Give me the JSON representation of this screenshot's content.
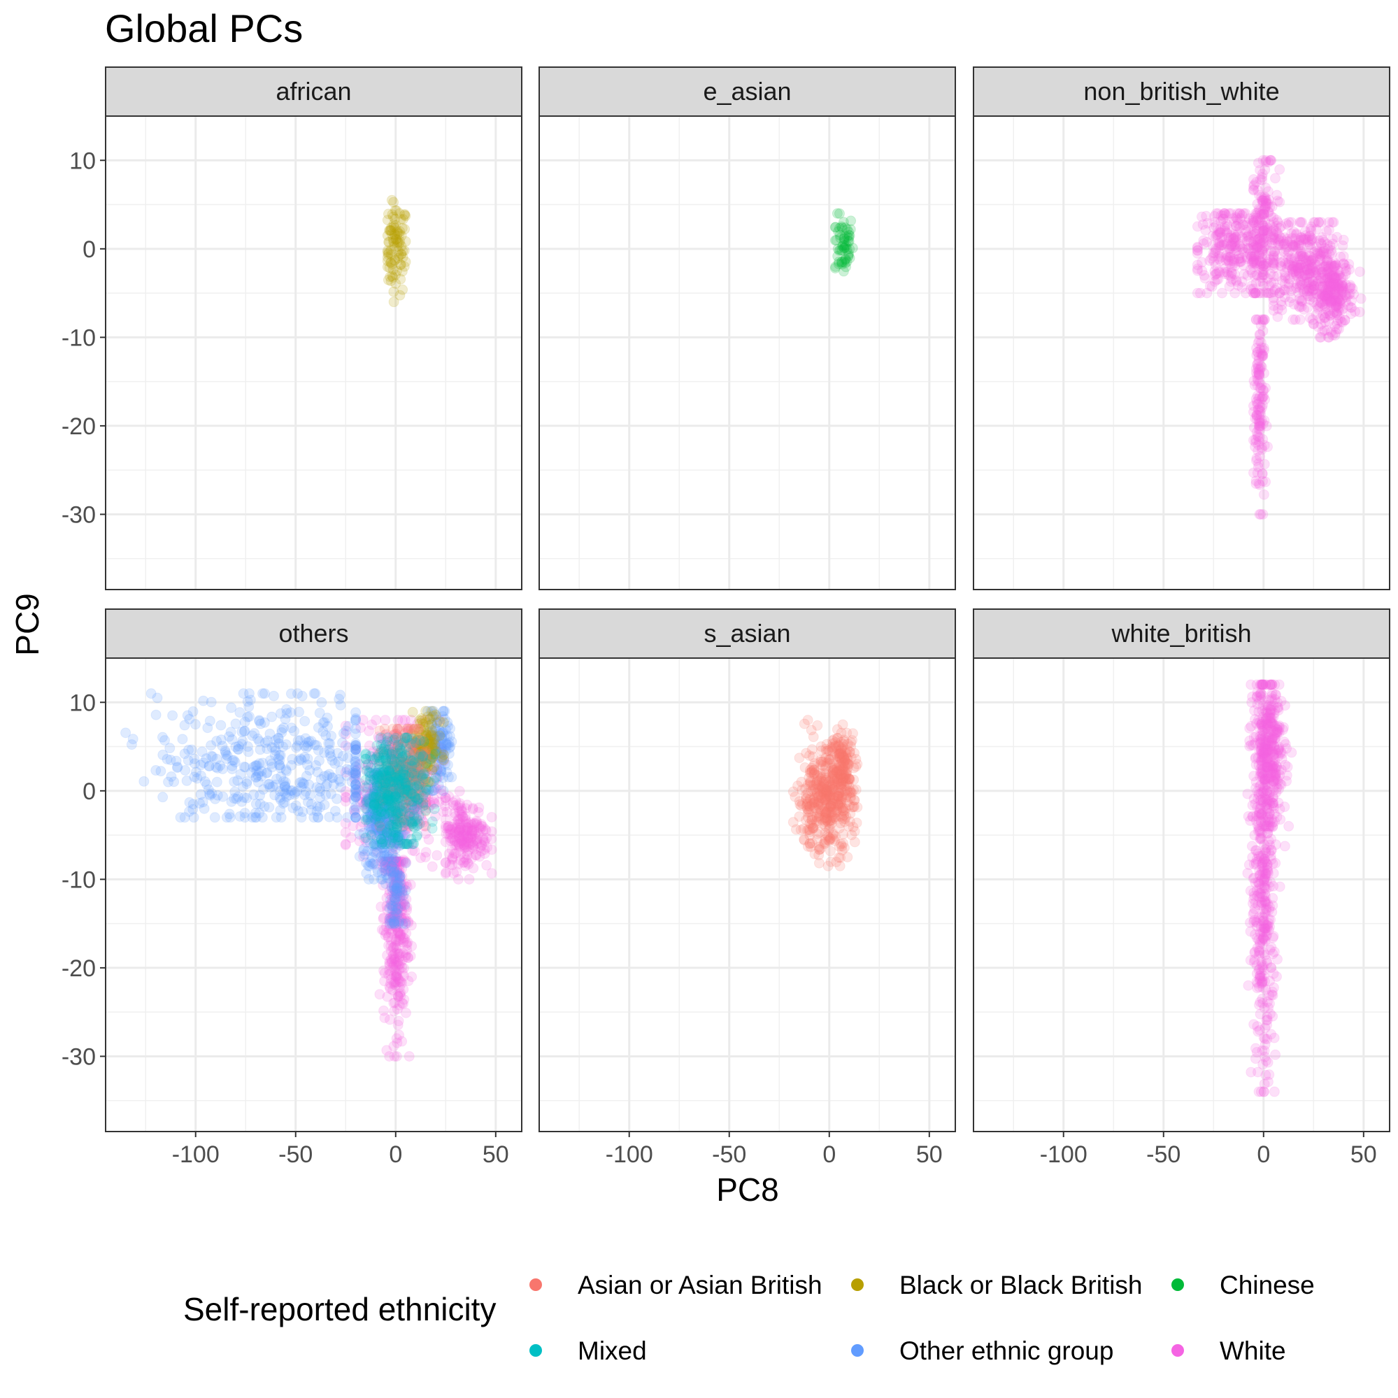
{
  "chart_data": {
    "type": "scatter",
    "title": "Global PCs",
    "xlabel": "PC8",
    "ylabel": "PC9",
    "xlim": [
      -145,
      63
    ],
    "ylim": [
      -38.5,
      15
    ],
    "x_ticks": [
      -100,
      -50,
      0,
      50
    ],
    "y_ticks": [
      10,
      0,
      -10,
      -20,
      -30
    ],
    "grid": true,
    "point_alpha": 0.05,
    "legend": {
      "title": "Self-reported ethnicity",
      "position": "bottom",
      "entries": [
        {
          "label": "Asian or Asian British",
          "color": "#F8766D"
        },
        {
          "label": "Black or Black British",
          "color": "#B79F00"
        },
        {
          "label": "Chinese",
          "color": "#00BA38"
        },
        {
          "label": "Mixed",
          "color": "#00BFC4"
        },
        {
          "label": "Other ethnic group",
          "color": "#619CFF"
        },
        {
          "label": "White",
          "color": "#F564E3"
        }
      ]
    },
    "panels": [
      {
        "label": "african",
        "clusters": [
          {
            "group": "Black or Black British",
            "center": [
              0,
              0
            ],
            "spread": [
              3,
              2.6
            ],
            "range_x": [
              -4,
              5
            ],
            "range_y": [
              -6,
              5.5
            ]
          }
        ]
      },
      {
        "label": "e_asian",
        "clusters": [
          {
            "group": "Chinese",
            "center": [
              7,
              0.5
            ],
            "spread": [
              2.5,
              1.8
            ],
            "range_x": [
              3,
              12
            ],
            "range_y": [
              -3.5,
              4
            ]
          }
        ]
      },
      {
        "label": "non_british_white",
        "clusters": [
          {
            "group": "White",
            "center": [
              0,
              2
            ],
            "spread": [
              4,
              4
            ],
            "range_x": [
              -5,
              8
            ],
            "range_y": [
              -5,
              10
            ]
          },
          {
            "group": "White",
            "center": [
              -15,
              0
            ],
            "spread": [
              10,
              2.5
            ],
            "range_x": [
              -33,
              0
            ],
            "range_y": [
              -5,
              4
            ]
          },
          {
            "group": "White",
            "center": [
              20,
              -2
            ],
            "spread": [
              9,
              3
            ],
            "range_x": [
              5,
              40
            ],
            "range_y": [
              -8,
              3
            ]
          },
          {
            "group": "White",
            "center": [
              35,
              -5
            ],
            "spread": [
              5,
              2
            ],
            "range_x": [
              25,
              50
            ],
            "range_y": [
              -10,
              0
            ]
          },
          {
            "group": "White",
            "center": [
              -2,
              -18
            ],
            "spread": [
              1.5,
              6
            ],
            "range_x": [
              -5,
              2
            ],
            "range_y": [
              -30,
              -8
            ]
          }
        ]
      },
      {
        "label": "others",
        "clusters": [
          {
            "group": "White",
            "center": [
              0,
              0
            ],
            "spread": [
              11,
              4
            ],
            "range_x": [
              -25,
              30
            ],
            "range_y": [
              -9,
              8
            ]
          },
          {
            "group": "White",
            "center": [
              35,
              -5
            ],
            "spread": [
              6,
              2
            ],
            "range_x": [
              25,
              48
            ],
            "range_y": [
              -10,
              0
            ]
          },
          {
            "group": "White",
            "center": [
              0,
              -15
            ],
            "spread": [
              3,
              6
            ],
            "range_x": [
              -8,
              8
            ],
            "range_y": [
              -30,
              -8
            ]
          },
          {
            "group": "Other ethnic group",
            "center": [
              -60,
              3
            ],
            "spread": [
              30,
              4
            ],
            "range_x": [
              -135,
              -20
            ],
            "range_y": [
              -3,
              11
            ]
          },
          {
            "group": "Other ethnic group",
            "center": [
              22,
              5
            ],
            "spread": [
              3,
              2.5
            ],
            "range_x": [
              15,
              28
            ],
            "range_y": [
              0,
              9
            ]
          },
          {
            "group": "Other ethnic group",
            "center": [
              -8,
              -4
            ],
            "spread": [
              4,
              3
            ],
            "range_x": [
              -18,
              2
            ],
            "range_y": [
              -10,
              2
            ]
          },
          {
            "group": "Other ethnic group",
            "center": [
              0,
              -10
            ],
            "spread": [
              2,
              3
            ],
            "range_x": [
              -5,
              5
            ],
            "range_y": [
              -15,
              -5
            ]
          },
          {
            "group": "Black or Black British",
            "center": [
              15,
              5
            ],
            "spread": [
              4,
              2
            ],
            "range_x": [
              8,
              24
            ],
            "range_y": [
              1,
              9
            ]
          },
          {
            "group": "Asian or Asian British",
            "center": [
              5,
              2
            ],
            "spread": [
              6,
              3
            ],
            "range_x": [
              -8,
              15
            ],
            "range_y": [
              -4,
              7
            ]
          },
          {
            "group": "Mixed",
            "center": [
              0,
              0
            ],
            "spread": [
              8,
              3
            ],
            "range_x": [
              -15,
              20
            ],
            "range_y": [
              -6,
              6
            ]
          }
        ]
      },
      {
        "label": "s_asian",
        "clusters": [
          {
            "group": "Asian or Asian British",
            "center": [
              -2,
              -1
            ],
            "spread": [
              7,
              3
            ],
            "range_x": [
              -18,
              14
            ],
            "range_y": [
              -8.5,
              8
            ]
          },
          {
            "group": "Asian or Asian British",
            "center": [
              7,
              3
            ],
            "spread": [
              3,
              2
            ],
            "range_x": [
              0,
              14
            ],
            "range_y": [
              -2,
              8
            ]
          }
        ]
      },
      {
        "label": "white_british",
        "clusters": [
          {
            "group": "White",
            "center": [
              0,
              -10
            ],
            "spread": [
              3,
              11
            ],
            "range_x": [
              -8,
              12
            ],
            "range_y": [
              -34,
              12
            ]
          },
          {
            "group": "White",
            "center": [
              3,
              4
            ],
            "spread": [
              4,
              4
            ],
            "range_x": [
              -7,
              14
            ],
            "range_y": [
              -4,
              12
            ]
          }
        ]
      }
    ]
  }
}
